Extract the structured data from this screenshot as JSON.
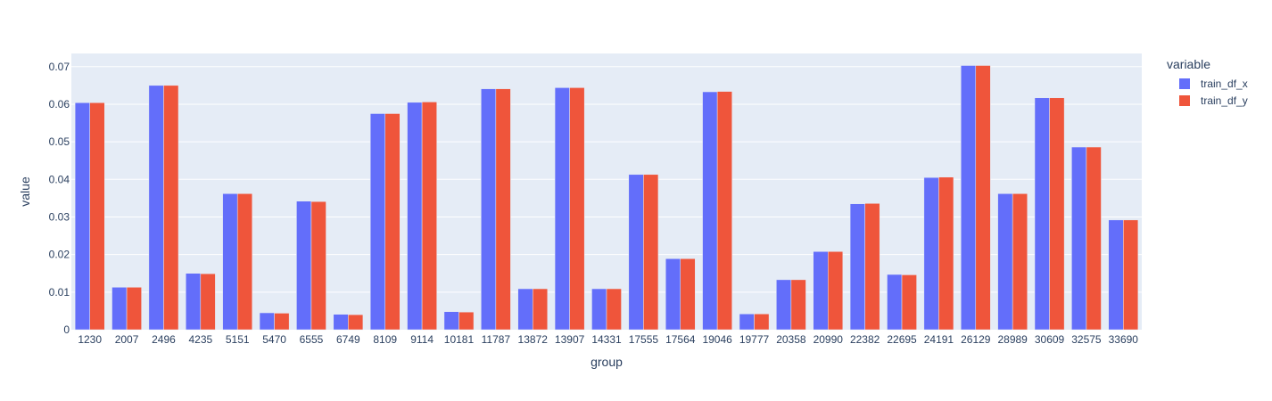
{
  "chart_data": {
    "type": "bar",
    "barmode": "group",
    "xlabel": "group",
    "ylabel": "value",
    "ylim": [
      0,
      0.0735
    ],
    "yticks": [
      0,
      0.01,
      0.02,
      0.03,
      0.04,
      0.05,
      0.06,
      0.07
    ],
    "ytick_labels": [
      "0",
      "0.01",
      "0.02",
      "0.03",
      "0.04",
      "0.05",
      "0.06",
      "0.07"
    ],
    "grid": true,
    "legend": {
      "title": "variable",
      "placement": "top-right"
    },
    "categories": [
      "1230",
      "2007",
      "2496",
      "4235",
      "5151",
      "5470",
      "6555",
      "6749",
      "8109",
      "9114",
      "10181",
      "11787",
      "13872",
      "13907",
      "14331",
      "17555",
      "17564",
      "19046",
      "19777",
      "20358",
      "20990",
      "22382",
      "22695",
      "24191",
      "26129",
      "28989",
      "30609",
      "32575",
      "33690"
    ],
    "series": [
      {
        "name": "train_df_x",
        "color": "#636efa",
        "values": [
          0.0604,
          0.0113,
          0.065,
          0.015,
          0.0362,
          0.0045,
          0.0342,
          0.0041,
          0.0575,
          0.0605,
          0.0048,
          0.0641,
          0.0109,
          0.0644,
          0.0109,
          0.0413,
          0.0189,
          0.0633,
          0.0042,
          0.0133,
          0.0208,
          0.0335,
          0.0147,
          0.0405,
          0.0703,
          0.0362,
          0.0617,
          0.0486,
          0.0292
        ]
      },
      {
        "name": "train_df_y",
        "color": "#ef553b",
        "values": [
          0.0604,
          0.0113,
          0.065,
          0.0149,
          0.0362,
          0.0044,
          0.0341,
          0.004,
          0.0575,
          0.0606,
          0.0047,
          0.0641,
          0.0109,
          0.0644,
          0.0109,
          0.0413,
          0.0189,
          0.0634,
          0.0042,
          0.0133,
          0.0208,
          0.0336,
          0.0146,
          0.0406,
          0.0703,
          0.0362,
          0.0617,
          0.0486,
          0.0292
        ]
      }
    ],
    "plot_bg": "#e5ecf6",
    "grid_color": "#ffffff"
  }
}
